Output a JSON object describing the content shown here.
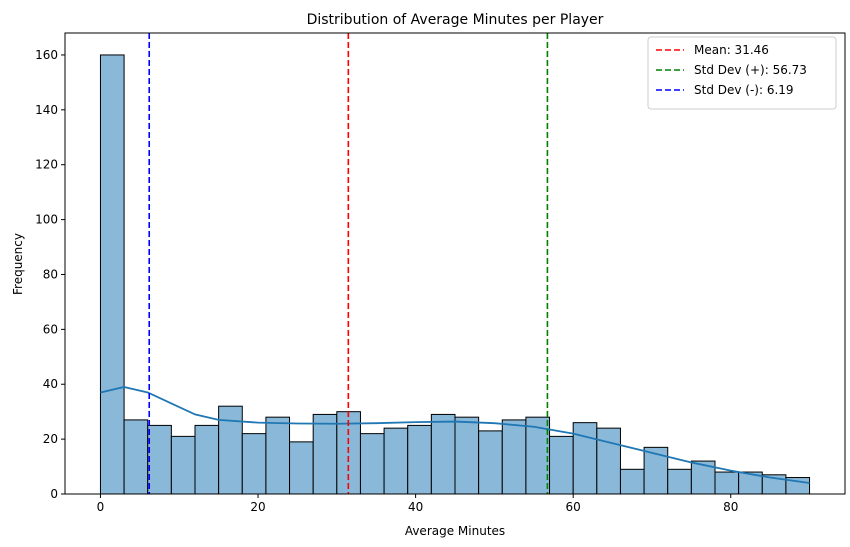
{
  "chart_data": {
    "type": "bar",
    "title": "Distribution of Average Minutes per Player",
    "xlabel": "Average Minutes",
    "ylabel": "Frequency",
    "xlim": [
      -4.5,
      94.5
    ],
    "ylim": [
      0,
      168
    ],
    "x_ticks": [
      0,
      20,
      40,
      60,
      80
    ],
    "y_ticks": [
      0,
      20,
      40,
      60,
      80,
      100,
      120,
      140,
      160
    ],
    "grid": false,
    "bin_start": 0,
    "bin_width": 3,
    "values": [
      160,
      27,
      25,
      21,
      25,
      32,
      22,
      28,
      19,
      29,
      30,
      22,
      24,
      25,
      29,
      28,
      23,
      27,
      28,
      21,
      26,
      24,
      9,
      17,
      9,
      12,
      8,
      8,
      7,
      6
    ],
    "kde": {
      "x": [
        0,
        3,
        6,
        9,
        12,
        15,
        20,
        25,
        30,
        35,
        40,
        45,
        50,
        55,
        60,
        65,
        70,
        75,
        80,
        85,
        90
      ],
      "y": [
        37,
        39,
        37,
        33,
        29,
        27,
        26,
        25.7,
        25.6,
        25.8,
        26.2,
        26.4,
        25.8,
        24.5,
        22,
        18.5,
        15,
        11.5,
        8.5,
        6,
        4
      ]
    },
    "vlines": [
      {
        "label": "Mean: 31.46",
        "x": 31.46,
        "color": "#ff0000"
      },
      {
        "label": "Std Dev (+): 56.73",
        "x": 56.73,
        "color": "#008000"
      },
      {
        "label": "Std Dev (-): 6.19",
        "x": 6.19,
        "color": "#0000ff"
      }
    ],
    "legend_position": "top-right",
    "colors": {
      "bar_fill": "#8ab8d9",
      "bar_edge": "#000000",
      "kde": "#1f77b4"
    }
  }
}
